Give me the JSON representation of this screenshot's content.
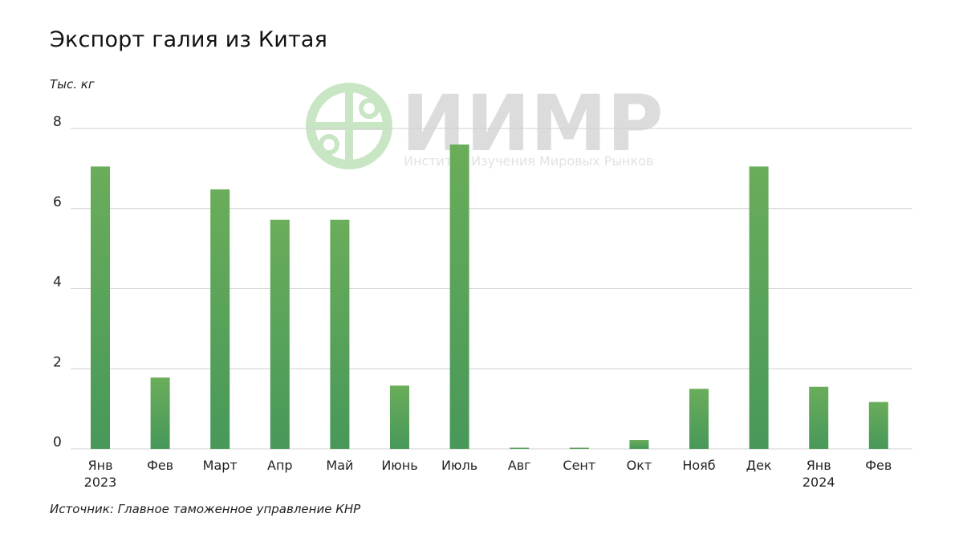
{
  "colors": {
    "bar_top": "#6aad5a",
    "bar_bottom": "#47985a",
    "grid": "#d0d0d0",
    "watermark_logo": "#c9e6c4",
    "watermark_text": "#dcdcdc"
  },
  "watermark": {
    "name": "ИИМР",
    "subtitle": "Институт Изучения Мировых Рынков",
    "icon": "globe-icon"
  },
  "chart_data": {
    "type": "bar",
    "title": "Экспорт галия из Китая",
    "ylabel": "Тыс. кг",
    "xlabel": "",
    "source": "Источник: Главное таможенное управление КНР",
    "categories": [
      "Янв",
      "Фев",
      "Март",
      "Апр",
      "Май",
      "Июнь",
      "Июль",
      "Авг",
      "Сент",
      "Окт",
      "Нояб",
      "Дек",
      "Янв",
      "Фев"
    ],
    "year_labels": [
      "2023",
      "",
      "",
      "",
      "",
      "",
      "",
      "",
      "",
      "",
      "",
      "",
      "2024",
      ""
    ],
    "values": [
      7.05,
      1.78,
      6.48,
      5.72,
      5.72,
      1.58,
      7.6,
      0.02,
      0.02,
      0.22,
      1.5,
      7.05,
      1.55,
      1.17
    ],
    "ylim": [
      0,
      8
    ],
    "yticks": [
      0,
      2,
      4,
      6,
      8
    ],
    "grid": true
  }
}
